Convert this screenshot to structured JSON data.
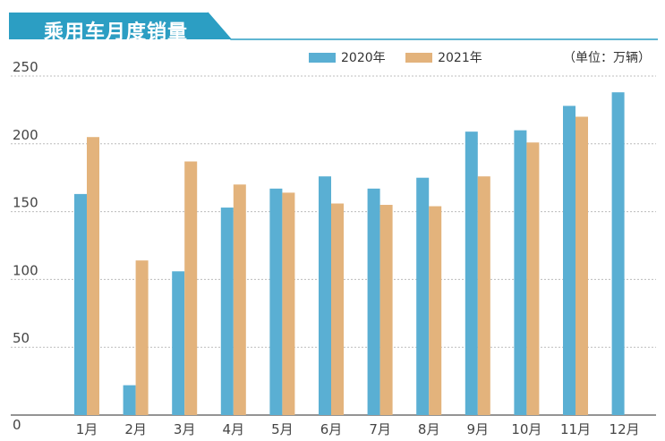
{
  "title": "乘用车月度销量",
  "unit_label": "（单位：万辆）",
  "colors": {
    "title_bg": "#2c9ec3",
    "series_2020": "#5aafd3",
    "series_2021": "#e3b37c",
    "grid": "#bcbcbc"
  },
  "chart_data": {
    "type": "bar",
    "categories": [
      "1月",
      "2月",
      "3月",
      "4月",
      "5月",
      "6月",
      "7月",
      "8月",
      "9月",
      "10月",
      "11月",
      "12月"
    ],
    "series": [
      {
        "name": "2020年",
        "values": [
          163,
          22,
          106,
          153,
          167,
          176,
          167,
          175,
          209,
          210,
          228,
          238
        ]
      },
      {
        "name": "2021年",
        "values": [
          205,
          114,
          187,
          170,
          164,
          156,
          155,
          154,
          176,
          201,
          220,
          0
        ]
      }
    ],
    "ylim": [
      0,
      250
    ],
    "yticks": [
      0,
      50,
      100,
      150,
      200,
      250
    ],
    "grid": true,
    "legend_position": "top"
  }
}
